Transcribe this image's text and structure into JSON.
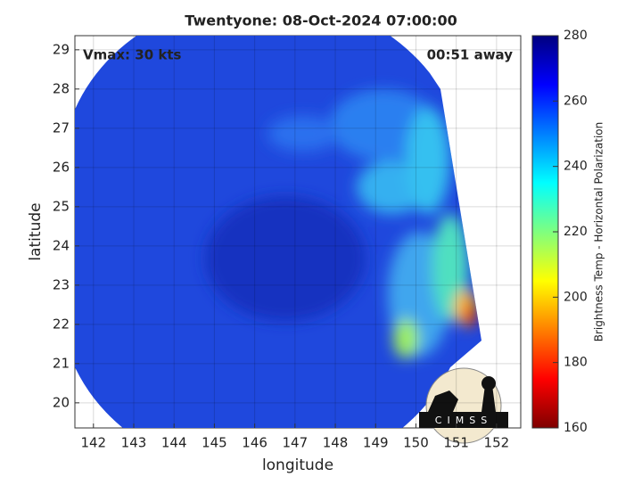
{
  "chart_data": {
    "type": "image-map",
    "title": "Twentyone: 08-Oct-2024 07:00:00",
    "annotations": [
      "Vmax: 30 kts",
      "00:51 away"
    ],
    "x_label": "longitude",
    "y_label": "latitude",
    "xlim": [
      141.54,
      152.6
    ],
    "ylim": [
      19.36,
      29.36
    ],
    "xticks": [
      142,
      143,
      144,
      145,
      146,
      147,
      148,
      149,
      150,
      151,
      152
    ],
    "yticks": [
      20,
      21,
      22,
      23,
      24,
      25,
      26,
      27,
      28,
      29
    ],
    "grid": true,
    "colorbar": {
      "label": "Brightness Temp - Horizontal Polarization",
      "lim": [
        160,
        280
      ],
      "ticks": [
        160,
        180,
        200,
        220,
        240,
        260,
        280
      ],
      "colormap": "jet"
    },
    "logo": "CIMSS"
  }
}
